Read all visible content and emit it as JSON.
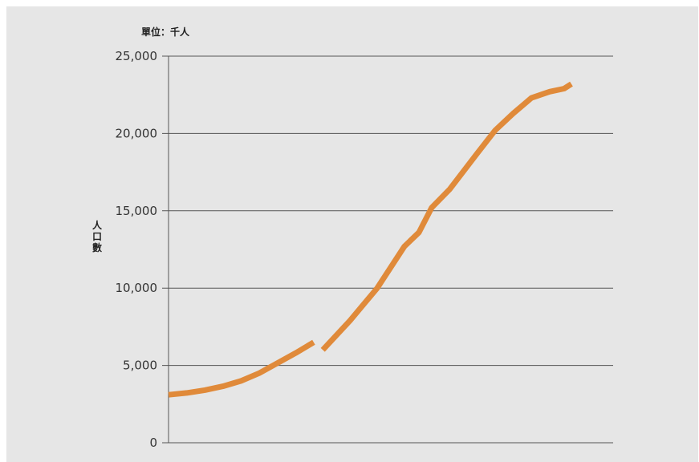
{
  "chart_data": {
    "type": "line",
    "unit_label": "單位：千人",
    "ylabel": "人口數",
    "xlabel": "",
    "ylim": [
      0,
      25000
    ],
    "yticks": [
      0,
      5000,
      10000,
      15000,
      20000,
      25000
    ],
    "ytick_labels": [
      "0",
      "5,000",
      "10,000",
      "15,000",
      "20,000",
      "25,000"
    ],
    "grid": true,
    "line_color": "#e08a3a",
    "background_color": "#e6e6e6",
    "series": [
      {
        "segments": [
          [
            [
              0,
              3100
            ],
            [
              10,
              3220
            ],
            [
              20,
              3400
            ],
            [
              30,
              3650
            ],
            [
              40,
              4000
            ],
            [
              50,
              4500
            ],
            [
              60,
              5150
            ],
            [
              70,
              5800
            ],
            [
              80,
              6500
            ]
          ],
          [
            [
              85,
              6000
            ],
            [
              100,
              7900
            ],
            [
              115,
              10000
            ],
            [
              130,
              12700
            ],
            [
              138,
              13600
            ],
            [
              145,
              15200
            ],
            [
              155,
              16400
            ],
            [
              170,
              18700
            ],
            [
              180,
              20200
            ],
            [
              190,
              21300
            ],
            [
              200,
              22300
            ],
            [
              210,
              22700
            ],
            [
              218,
              22900
            ],
            [
              222,
              23200
            ]
          ]
        ]
      }
    ],
    "xlim": [
      0,
      245
    ]
  }
}
